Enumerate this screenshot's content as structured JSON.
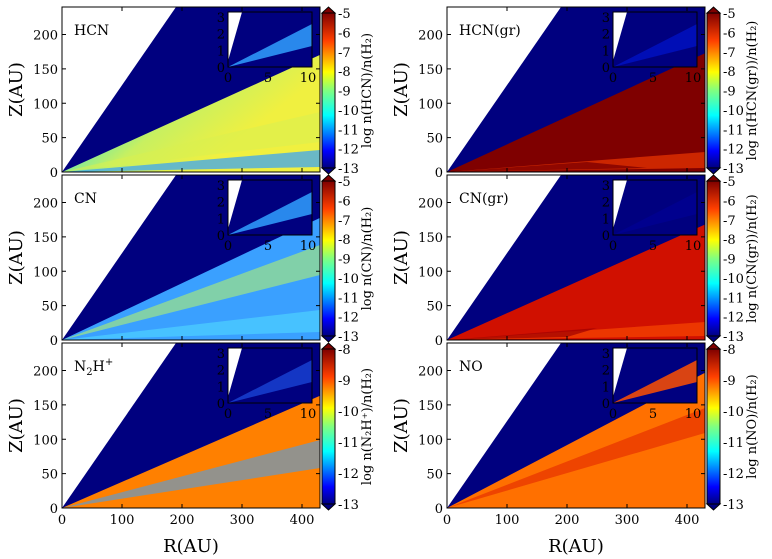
{
  "figure": {
    "y_axis_title": "Z(AU)",
    "x_axis_title": "R(AU)",
    "x_ticks": [
      "0",
      "100",
      "200",
      "300",
      "400"
    ],
    "y_ticks": [
      "0",
      "50",
      "100",
      "150",
      "200"
    ],
    "inset_x_ticks": [
      "0",
      "5",
      "10"
    ],
    "inset_y_ticks": [
      "0",
      "1",
      "2",
      "3"
    ]
  },
  "chart_data": [
    {
      "type": "heatmap",
      "panel": "HCN",
      "colorbar_label": "log n(HCN)/n(H₂)",
      "xlim": [
        0,
        430
      ],
      "ylim": [
        0,
        240
      ],
      "inset_xlim": [
        0,
        10
      ],
      "inset_ylim": [
        0,
        3.3
      ],
      "colorbar_ticks": [
        "-5",
        "-6",
        "-7",
        "-8",
        "-9",
        "-10",
        "-11",
        "-12",
        "-13"
      ],
      "colorbar_range": [
        -13,
        -5
      ]
    },
    {
      "type": "heatmap",
      "panel": "HCN(gr)",
      "colorbar_label": "log n(HCN(gr))/n(H₂)",
      "xlim": [
        0,
        430
      ],
      "ylim": [
        0,
        240
      ],
      "inset_xlim": [
        0,
        10
      ],
      "inset_ylim": [
        0,
        3.3
      ],
      "colorbar_ticks": [
        "-5",
        "-6",
        "-7",
        "-8",
        "-9",
        "-10",
        "-11",
        "-12",
        "-13"
      ],
      "colorbar_range": [
        -13,
        -5
      ]
    },
    {
      "type": "heatmap",
      "panel": "CN",
      "colorbar_label": "log n(CN)/n(H₂)",
      "xlim": [
        0,
        430
      ],
      "ylim": [
        0,
        240
      ],
      "inset_xlim": [
        0,
        10
      ],
      "inset_ylim": [
        0,
        3.3
      ],
      "colorbar_ticks": [
        "-5",
        "-6",
        "-7",
        "-8",
        "-9",
        "-10",
        "-11",
        "-12",
        "-13"
      ],
      "colorbar_range": [
        -13,
        -5
      ]
    },
    {
      "type": "heatmap",
      "panel": "CN(gr)",
      "colorbar_label": "log n(CN(gr))/n(H₂)",
      "xlim": [
        0,
        430
      ],
      "ylim": [
        0,
        240
      ],
      "inset_xlim": [
        0,
        10
      ],
      "inset_ylim": [
        0,
        3.3
      ],
      "colorbar_ticks": [
        "-5",
        "-6",
        "-7",
        "-8",
        "-9",
        "-10",
        "-11",
        "-12",
        "-13"
      ],
      "colorbar_range": [
        -13,
        -5
      ]
    },
    {
      "type": "heatmap",
      "panel": "N₂H⁺",
      "colorbar_label": "log n(N₂H⁺)/n(H₂)",
      "xlim": [
        0,
        430
      ],
      "ylim": [
        0,
        240
      ],
      "inset_xlim": [
        0,
        10
      ],
      "inset_ylim": [
        0,
        3.3
      ],
      "colorbar_ticks": [
        "-8",
        "-9",
        "-10",
        "-11",
        "-12",
        "-13"
      ],
      "colorbar_range": [
        -13,
        -8
      ]
    },
    {
      "type": "heatmap",
      "panel": "NO",
      "colorbar_label": "log n(NO)/n(H₂)",
      "xlim": [
        0,
        430
      ],
      "ylim": [
        0,
        240
      ],
      "inset_xlim": [
        0,
        10
      ],
      "inset_ylim": [
        0,
        3.3
      ],
      "colorbar_ticks": [
        "-8",
        "-9",
        "-10",
        "-11",
        "-12",
        "-13"
      ],
      "colorbar_range": [
        -13,
        -8
      ]
    }
  ],
  "colors": {
    "background_dark": "#00007f",
    "jet": [
      "#00007f",
      "#0000ff",
      "#0080ff",
      "#00ffff",
      "#80ff80",
      "#ffff00",
      "#ff8000",
      "#ff0000",
      "#7f0000"
    ]
  }
}
